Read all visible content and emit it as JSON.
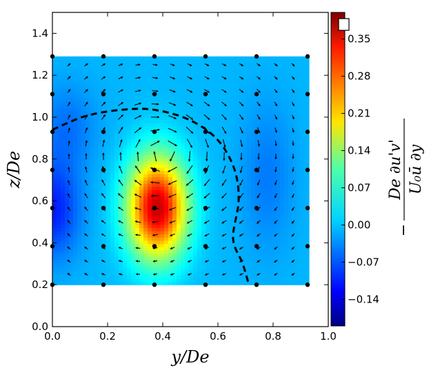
{
  "chart_data": {
    "type": "heatmap",
    "title": "",
    "xlabel": "y/De",
    "ylabel": "z/De",
    "xlim": [
      0.0,
      1.0
    ],
    "ylim": [
      0.0,
      1.5
    ],
    "xticks": [
      0.0,
      0.2,
      0.4,
      0.6,
      0.8,
      1.0
    ],
    "yticks": [
      0.0,
      0.2,
      0.4,
      0.6,
      0.8,
      1.0,
      1.2,
      1.4
    ],
    "xtick_labels": [
      "0.0",
      "0.2",
      "0.4",
      "0.6",
      "0.8",
      "1.0"
    ],
    "ytick_labels": [
      "0.0",
      "0.2",
      "0.4",
      "0.6",
      "0.8",
      "1.0",
      "1.2",
      "1.4"
    ],
    "data_extent": {
      "y": [
        0.0,
        0.93
      ],
      "z": [
        0.2,
        1.29
      ]
    },
    "colorbar": {
      "label": "-De/(U0 ū) ∂(u'v')/∂y",
      "label_parts": {
        "num": "De ∂u'v'",
        "den": "U₀ū  ∂y"
      },
      "range": [
        -0.19,
        0.4
      ],
      "ticks": [
        -0.14,
        -0.07,
        0.0,
        0.07,
        0.14,
        0.21,
        0.28,
        0.35
      ],
      "tick_labels": [
        "−0.14",
        "−0.07",
        "0.00",
        "0.07",
        "0.14",
        "0.21",
        "0.28",
        "0.35"
      ]
    },
    "field": {
      "background": -0.01,
      "bumps": [
        {
          "name": "peak",
          "y": 0.38,
          "z": 0.57,
          "amp": 0.37,
          "sy": 0.075,
          "sz": 0.17
        },
        {
          "name": "low-left",
          "y": 0.0,
          "z": 0.56,
          "amp": -0.09,
          "sy": 0.07,
          "sz": 0.16
        },
        {
          "name": "low-left-upper",
          "y": 0.05,
          "z": 0.95,
          "amp": -0.04,
          "sy": 0.08,
          "sz": 0.15
        },
        {
          "name": "low-right",
          "y": 0.78,
          "z": 0.72,
          "amp": -0.035,
          "sy": 0.07,
          "sz": 0.25
        }
      ]
    },
    "measurement_points": {
      "y": [
        0.0,
        0.185,
        0.37,
        0.555,
        0.74,
        0.925
      ],
      "z": [
        0.2,
        0.384,
        0.566,
        0.748,
        0.93,
        1.11,
        1.29
      ]
    },
    "vector_grid": {
      "y_start": 0.06,
      "y_step": 0.0625,
      "ny": 14,
      "z_start": 0.25,
      "z_step": 0.0625,
      "nz": 17,
      "vortex_center": {
        "y": 0.44,
        "z": 0.82
      }
    },
    "boundary_curve": {
      "style": "dashed",
      "points": [
        [
          0.0,
          0.94
        ],
        [
          0.12,
          1.005
        ],
        [
          0.25,
          1.035
        ],
        [
          0.37,
          1.035
        ],
        [
          0.5,
          0.985
        ],
        [
          0.6,
          0.89
        ],
        [
          0.66,
          0.75
        ],
        [
          0.675,
          0.6
        ],
        [
          0.655,
          0.42
        ],
        [
          0.69,
          0.3
        ],
        [
          0.71,
          0.21
        ]
      ]
    }
  }
}
